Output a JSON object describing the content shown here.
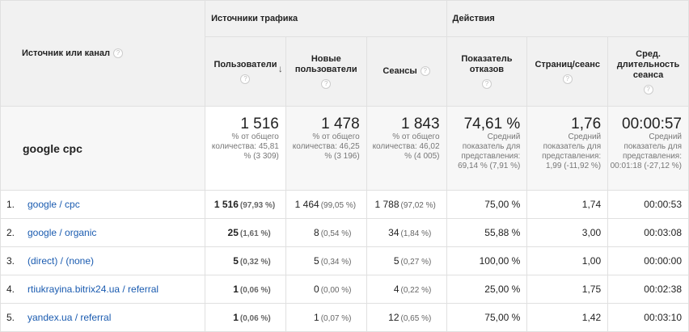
{
  "header": {
    "source_label": "Источник или канал",
    "group_traffic": "Источники трафика",
    "group_actions": "Действия",
    "columns": {
      "users": "Пользователи",
      "new_users": "Новые пользователи",
      "sessions": "Сеансы",
      "bounce": "Показатель отказов",
      "pages": "Страниц/сеанс",
      "duration": "Сред. длительность сеанса"
    }
  },
  "summary": {
    "label": "google cpc",
    "users": {
      "value": "1 516",
      "note": "% от общего количества: 45,81 % (3 309)"
    },
    "new_users": {
      "value": "1 478",
      "note": "% от общего количества: 46,25 % (3 196)"
    },
    "sessions": {
      "value": "1 843",
      "note": "% от общего количества: 46,02 % (4 005)"
    },
    "bounce": {
      "value": "74,61 %",
      "note": "Средний показатель для представления: 69,14 % (7,91 %)"
    },
    "pages": {
      "value": "1,76",
      "note": "Средний показатель для представления: 1,99 (-11,92 %)"
    },
    "duration": {
      "value": "00:00:57",
      "note": "Средний показатель для представления: 00:01:18 (-27,12 %)"
    }
  },
  "rows": [
    {
      "idx": "1.",
      "source": "google / cpc",
      "users": "1 516",
      "users_pct": "(97,93 %)",
      "new_users": "1 464",
      "new_users_pct": "(99,05 %)",
      "sessions": "1 788",
      "sessions_pct": "(97,02 %)",
      "bounce": "75,00 %",
      "pages": "1,74",
      "duration": "00:00:53"
    },
    {
      "idx": "2.",
      "source": "google / organic",
      "users": "25",
      "users_pct": "(1,61 %)",
      "new_users": "8",
      "new_users_pct": "(0,54 %)",
      "sessions": "34",
      "sessions_pct": "(1,84 %)",
      "bounce": "55,88 %",
      "pages": "3,00",
      "duration": "00:03:08"
    },
    {
      "idx": "3.",
      "source": "(direct) / (none)",
      "users": "5",
      "users_pct": "(0,32 %)",
      "new_users": "5",
      "new_users_pct": "(0,34 %)",
      "sessions": "5",
      "sessions_pct": "(0,27 %)",
      "bounce": "100,00 %",
      "pages": "1,00",
      "duration": "00:00:00"
    },
    {
      "idx": "4.",
      "source": "rtiukrayina.bitrix24.ua / referral",
      "users": "1",
      "users_pct": "(0,06 %)",
      "new_users": "0",
      "new_users_pct": "(0,00 %)",
      "sessions": "4",
      "sessions_pct": "(0,22 %)",
      "bounce": "25,00 %",
      "pages": "1,75",
      "duration": "00:02:38"
    },
    {
      "idx": "5.",
      "source": "yandex.ua / referral",
      "users": "1",
      "users_pct": "(0,06 %)",
      "new_users": "1",
      "new_users_pct": "(0,07 %)",
      "sessions": "12",
      "sessions_pct": "(0,65 %)",
      "bounce": "75,00 %",
      "pages": "1,42",
      "duration": "00:03:10"
    }
  ]
}
